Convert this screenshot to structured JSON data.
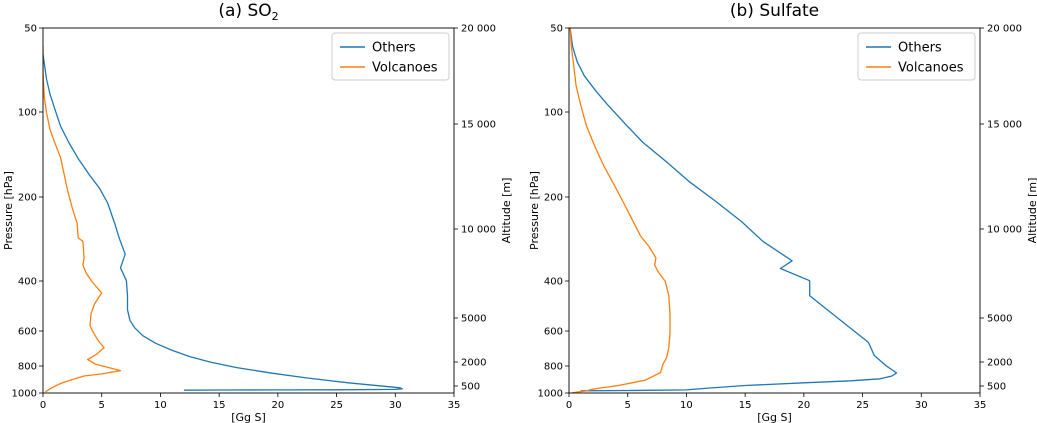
{
  "chart_data": [
    {
      "type": "line",
      "title": "(a) SO2",
      "title_main": "(a) SO",
      "title_sub": "2",
      "xlabel": "[Gg S]",
      "ylabel": "Pressure [hPa]",
      "y2label": "Altitude [m]",
      "xlim": [
        0,
        35
      ],
      "ylim": [
        1000,
        50
      ],
      "xticks": [
        "0",
        "5",
        "10",
        "15",
        "20",
        "25",
        "30",
        "35"
      ],
      "yticks": [
        "50",
        "100",
        "200",
        "400",
        "600",
        "800",
        "1000"
      ],
      "y2ticks": [
        "20 000",
        "15 000",
        "10 000",
        "5000",
        "2000",
        "500"
      ],
      "legend": {
        "position": "upper right",
        "entries": [
          "Others",
          "Volcanoes"
        ]
      },
      "series": [
        {
          "name": "Others",
          "color": "#1f77b4",
          "points": [
            [
              0.0,
              62
            ],
            [
              0.3,
              76
            ],
            [
              0.6,
              86
            ],
            [
              1.0,
              97
            ],
            [
              1.5,
              112
            ],
            [
              2.2,
              128
            ],
            [
              3.0,
              146
            ],
            [
              4.0,
              168
            ],
            [
              4.8,
              186
            ],
            [
              5.5,
              210
            ],
            [
              6.1,
              248
            ],
            [
              6.5,
              281
            ],
            [
              7.0,
              320
            ],
            [
              6.6,
              358
            ],
            [
              7.1,
              398
            ],
            [
              7.2,
              450
            ],
            [
              7.2,
              505
            ],
            [
              7.4,
              550
            ],
            [
              7.8,
              585
            ],
            [
              8.5,
              625
            ],
            [
              9.6,
              665
            ],
            [
              11.0,
              705
            ],
            [
              12.5,
              742
            ],
            [
              14.3,
              777
            ],
            [
              16.5,
              812
            ],
            [
              19.5,
              850
            ],
            [
              22.5,
              884
            ],
            [
              26.0,
              920
            ],
            [
              29.0,
              946
            ],
            [
              30.4,
              958
            ],
            [
              30.6,
              966
            ],
            [
              30.0,
              971
            ],
            [
              25.0,
              974
            ],
            [
              20.0,
              975
            ],
            [
              15.0,
              976
            ],
            [
              12.0,
              977
            ]
          ]
        },
        {
          "name": "Volcanoes",
          "color": "#ff7f0e",
          "points": [
            [
              0.0,
              58
            ],
            [
              0.0,
              72
            ],
            [
              0.1,
              88
            ],
            [
              0.3,
              100
            ],
            [
              0.6,
              115
            ],
            [
              1.0,
              128
            ],
            [
              1.5,
              145
            ],
            [
              1.8,
              166
            ],
            [
              2.1,
              190
            ],
            [
              2.5,
              220
            ],
            [
              2.9,
              248
            ],
            [
              3.0,
              280
            ],
            [
              3.4,
              288
            ],
            [
              3.5,
              330
            ],
            [
              3.4,
              350
            ],
            [
              3.7,
              375
            ],
            [
              4.2,
              402
            ],
            [
              5.0,
              440
            ],
            [
              4.4,
              480
            ],
            [
              4.1,
              520
            ],
            [
              4.0,
              575
            ],
            [
              4.3,
              610
            ],
            [
              4.7,
              650
            ],
            [
              5.2,
              690
            ],
            [
              4.5,
              730
            ],
            [
              3.8,
              760
            ],
            [
              4.5,
              790
            ],
            [
              6.6,
              832
            ],
            [
              5.0,
              855
            ],
            [
              3.5,
              870
            ],
            [
              2.5,
              895
            ],
            [
              1.5,
              925
            ],
            [
              0.8,
              955
            ],
            [
              0.2,
              990
            ]
          ]
        }
      ]
    },
    {
      "type": "line",
      "title": "(b) Sulfate",
      "title_main": "(b) Sulfate",
      "title_sub": "",
      "xlabel": "[Gg S]",
      "ylabel": "Pressure [hPa]",
      "y2label": "Altitude [m]",
      "xlim": [
        0,
        35
      ],
      "ylim": [
        1000,
        50
      ],
      "xticks": [
        "0",
        "5",
        "10",
        "15",
        "20",
        "25",
        "30",
        "35"
      ],
      "yticks": [
        "50",
        "100",
        "200",
        "400",
        "600",
        "800",
        "1000"
      ],
      "y2ticks": [
        "20 000",
        "15 000",
        "10 000",
        "5000",
        "2000",
        "500"
      ],
      "legend": {
        "position": "upper right",
        "entries": [
          "Others",
          "Volcanoes"
        ]
      },
      "series": [
        {
          "name": "Others",
          "color": "#1f77b4",
          "points": [
            [
              0.1,
              50
            ],
            [
              0.3,
              58
            ],
            [
              0.7,
              66
            ],
            [
              1.3,
              74
            ],
            [
              2.3,
              84
            ],
            [
              3.3,
              94
            ],
            [
              4.8,
              110
            ],
            [
              6.3,
              128
            ],
            [
              8.3,
              150
            ],
            [
              10.2,
              176
            ],
            [
              12.4,
              206
            ],
            [
              14.7,
              245
            ],
            [
              16.5,
              288
            ],
            [
              19.0,
              338
            ],
            [
              18.0,
              360
            ],
            [
              20.5,
              398
            ],
            [
              20.5,
              450
            ],
            [
              22.0,
              505
            ],
            [
              23.7,
              575
            ],
            [
              25.5,
              660
            ],
            [
              26.0,
              735
            ],
            [
              27.0,
              800
            ],
            [
              27.9,
              848
            ],
            [
              27.5,
              870
            ],
            [
              26.5,
              890
            ],
            [
              24.0,
              905
            ],
            [
              20.0,
              920
            ],
            [
              15.0,
              940
            ],
            [
              12.0,
              960
            ],
            [
              10.0,
              975
            ],
            [
              5.0,
              980
            ],
            [
              1.0,
              982
            ]
          ]
        },
        {
          "name": "Volcanoes",
          "color": "#ff7f0e",
          "points": [
            [
              0.1,
              50
            ],
            [
              0.2,
              58
            ],
            [
              0.4,
              68
            ],
            [
              0.6,
              80
            ],
            [
              1.0,
              94
            ],
            [
              1.5,
              112
            ],
            [
              2.2,
              132
            ],
            [
              3.0,
              156
            ],
            [
              3.9,
              183
            ],
            [
              4.7,
              212
            ],
            [
              5.4,
              242
            ],
            [
              6.1,
              276
            ],
            [
              6.8,
              300
            ],
            [
              7.4,
              330
            ],
            [
              7.3,
              350
            ],
            [
              7.6,
              370
            ],
            [
              8.2,
              400
            ],
            [
              8.5,
              450
            ],
            [
              8.6,
              525
            ],
            [
              8.6,
              610
            ],
            [
              8.5,
              690
            ],
            [
              8.3,
              750
            ],
            [
              8.0,
              790
            ],
            [
              7.8,
              845
            ],
            [
              6.5,
              900
            ],
            [
              4.2,
              940
            ],
            [
              2.7,
              960
            ],
            [
              2.0,
              970
            ],
            [
              1.5,
              982
            ],
            [
              0.3,
              998
            ]
          ]
        }
      ]
    }
  ]
}
